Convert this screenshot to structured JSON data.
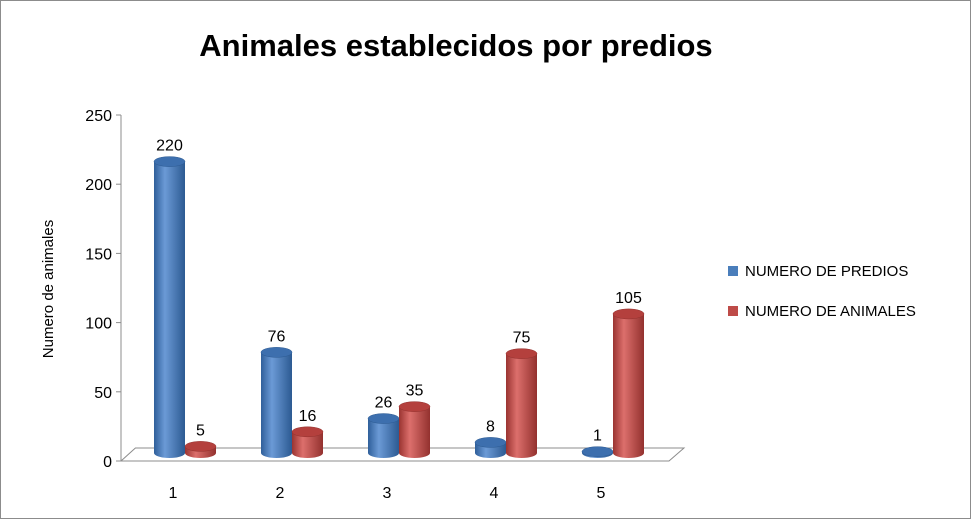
{
  "chart_data": {
    "type": "bar",
    "title": "Animales establecidos por predios",
    "xlabel": "",
    "ylabel": "Numero de animales",
    "categories": [
      "1",
      "2",
      "3",
      "4",
      "5"
    ],
    "series": [
      {
        "name": "NUMERO DE PREDIOS",
        "values": [
          220,
          76,
          26,
          8,
          1
        ],
        "color": "#4A7EBB"
      },
      {
        "name": "NUMERO DE ANIMALES",
        "values": [
          5,
          16,
          35,
          75,
          105
        ],
        "color": "#BE4B48"
      }
    ],
    "ylim": [
      0,
      250
    ],
    "yticks": [
      "0",
      "50",
      "100",
      "150",
      "200",
      "250"
    ],
    "legend_position": "right",
    "grid": false,
    "style": "3d-cylinder"
  }
}
